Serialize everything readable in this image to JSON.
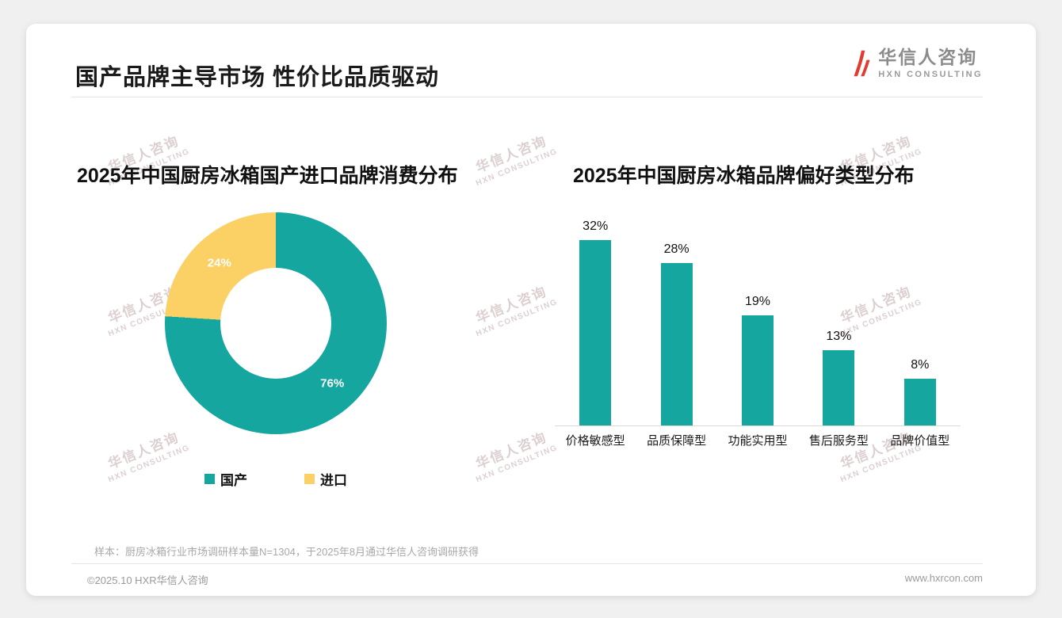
{
  "page": {
    "title": "国产品牌主导市场 性价比品质驱动",
    "logo": {
      "name": "华信人咨询",
      "subtitle": "HXN CONSULTING"
    },
    "watermark": {
      "line1": "华信人咨询",
      "line2": "HXN CONSULTING"
    },
    "footnote": "样本：厨房冰箱行业市场调研样本量N=1304，于2025年8月通过华信人咨询调研获得",
    "footer": {
      "left": "©2025.10 HXR华信人咨询",
      "right": "www.hxrcon.com"
    }
  },
  "colors": {
    "teal": "#15A79F",
    "yellow": "#FBD065",
    "accent_red": "#E23B30"
  },
  "chart_data": [
    {
      "type": "pie",
      "donut": true,
      "title": "2025年中国厨房冰箱国产进口品牌消费分布",
      "labels": [
        "国产",
        "进口"
      ],
      "values": [
        76,
        24
      ],
      "value_labels": [
        "76%",
        "24%"
      ],
      "colors": [
        "#15A79F",
        "#FBD065"
      ],
      "legend_position": "bottom"
    },
    {
      "type": "bar",
      "title": "2025年中国厨房冰箱品牌偏好类型分布",
      "categories": [
        "价格敏感型",
        "品质保障型",
        "功能实用型",
        "售后服务型",
        "品牌价值型"
      ],
      "values": [
        32,
        28,
        19,
        13,
        8
      ],
      "value_labels": [
        "32%",
        "28%",
        "19%",
        "13%",
        "8%"
      ],
      "bar_color": "#15A79F",
      "ylim": [
        0,
        35
      ],
      "grid": false
    }
  ]
}
